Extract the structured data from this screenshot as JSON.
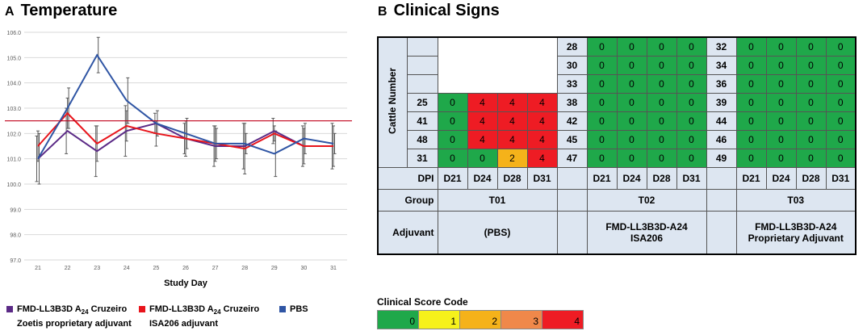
{
  "panelA": {
    "letter": "A",
    "title": "Temperature"
  },
  "panelB": {
    "letter": "B",
    "title": "Clinical Signs"
  },
  "chart_data": {
    "type": "line",
    "title": "Temperature",
    "xlabel": "Study Day",
    "ylabel": "",
    "categories": [
      "21",
      "22",
      "23",
      "24",
      "25",
      "26",
      "27",
      "28",
      "29",
      "30",
      "31"
    ],
    "ylim": [
      97.0,
      106.0
    ],
    "yticks": [
      "97.0",
      "98.0",
      "99.0",
      "100.0",
      "101.0",
      "102.0",
      "103.0",
      "104.0",
      "105.0",
      "106.0"
    ],
    "reference_line": 102.5,
    "series": [
      {
        "name": "FMD-LL3B3D A24 Cruzeiro Zoetis proprietary adjuvant",
        "color": "#5b2a86",
        "values": [
          101.0,
          102.1,
          101.3,
          102.1,
          102.4,
          101.8,
          101.5,
          101.5,
          102.1,
          101.5,
          101.5
        ],
        "err": [
          0.9,
          0.9,
          1.0,
          1.0,
          0.4,
          0.6,
          0.8,
          0.9,
          0.5,
          0.8,
          0.9
        ]
      },
      {
        "name": "FMD-LL3B3D A24 Cruzeiro ISA206 adjuvant",
        "color": "#e8141b",
        "values": [
          101.5,
          102.8,
          101.6,
          102.3,
          102.0,
          101.8,
          101.6,
          101.4,
          102.0,
          101.5,
          101.5
        ],
        "err": [
          0.6,
          0.6,
          0.7,
          0.6,
          0.5,
          0.7,
          0.7,
          1.0,
          0.3,
          0.7,
          0.8
        ]
      },
      {
        "name": "PBS",
        "color": "#2f55a4",
        "values": [
          101.0,
          103.0,
          105.1,
          103.3,
          102.4,
          102.0,
          101.6,
          101.6,
          101.2,
          101.8,
          101.6
        ],
        "err": [
          1.0,
          0.8,
          0.7,
          0.9,
          0.5,
          0.6,
          0.6,
          0.4,
          0.9,
          0.6,
          0.4
        ]
      }
    ]
  },
  "legend": [
    {
      "pre": "FMD-LL3B3D A",
      "sub": "24",
      "post": " Cruzeiro",
      "line2": "Zoetis proprietary adjuvant",
      "color": "#5b2a86"
    },
    {
      "pre": "FMD-LL3B3D A",
      "sub": "24",
      "post": " Cruzeiro",
      "line2": "ISA206 adjuvant",
      "color": "#e8141b"
    },
    {
      "pre": "PBS",
      "sub": "",
      "post": "",
      "line2": "",
      "color": "#2f55a4"
    }
  ],
  "table": {
    "cattle_label": "Cattle Number",
    "dpi_label": "DPI",
    "days": [
      "D21",
      "D24",
      "D28",
      "D31"
    ],
    "group_label": "Group",
    "adjuvant_label": "Adjuvant",
    "groups": [
      {
        "name": "T01",
        "adjuvant_line1": "(PBS)",
        "adjuvant_line2": ""
      },
      {
        "name": "T02",
        "adjuvant_line1": "FMD-LL3B3D-A24",
        "adjuvant_line2": "ISA206"
      },
      {
        "name": "T03",
        "adjuvant_line1": "FMD-LL3B3D-A24",
        "adjuvant_line2": "Proprietary Adjuvant"
      }
    ],
    "rows": [
      {
        "t01_id": "",
        "t01": null,
        "t02_id": "28",
        "t02": [
          0,
          0,
          0,
          0
        ],
        "t03_id": "32",
        "t03": [
          0,
          0,
          0,
          0
        ]
      },
      {
        "t01_id": "",
        "t01": null,
        "t02_id": "30",
        "t02": [
          0,
          0,
          0,
          0
        ],
        "t03_id": "34",
        "t03": [
          0,
          0,
          0,
          0
        ]
      },
      {
        "t01_id": "",
        "t01": null,
        "t02_id": "33",
        "t02": [
          0,
          0,
          0,
          0
        ],
        "t03_id": "36",
        "t03": [
          0,
          0,
          0,
          0
        ]
      },
      {
        "t01_id": "25",
        "t01": [
          0,
          4,
          4,
          4
        ],
        "t02_id": "38",
        "t02": [
          0,
          0,
          0,
          0
        ],
        "t03_id": "39",
        "t03": [
          0,
          0,
          0,
          0
        ]
      },
      {
        "t01_id": "41",
        "t01": [
          0,
          4,
          4,
          4
        ],
        "t02_id": "42",
        "t02": [
          0,
          0,
          0,
          0
        ],
        "t03_id": "44",
        "t03": [
          0,
          0,
          0,
          0
        ]
      },
      {
        "t01_id": "48",
        "t01": [
          0,
          4,
          4,
          4
        ],
        "t02_id": "45",
        "t02": [
          0,
          0,
          0,
          0
        ],
        "t03_id": "46",
        "t03": [
          0,
          0,
          0,
          0
        ]
      },
      {
        "t01_id": "31",
        "t01": [
          0,
          0,
          2,
          4
        ],
        "t02_id": "47",
        "t02": [
          0,
          0,
          0,
          0
        ],
        "t03_id": "49",
        "t03": [
          0,
          0,
          0,
          0
        ]
      }
    ]
  },
  "score_code": {
    "title": "Clinical Score Code",
    "levels": [
      {
        "label": "0",
        "color": "#1fa84a"
      },
      {
        "label": "1",
        "color": "#f6f11b"
      },
      {
        "label": "2",
        "color": "#f5b21a"
      },
      {
        "label": "3",
        "color": "#f0884a"
      },
      {
        "label": "4",
        "color": "#ee1c24"
      }
    ]
  }
}
